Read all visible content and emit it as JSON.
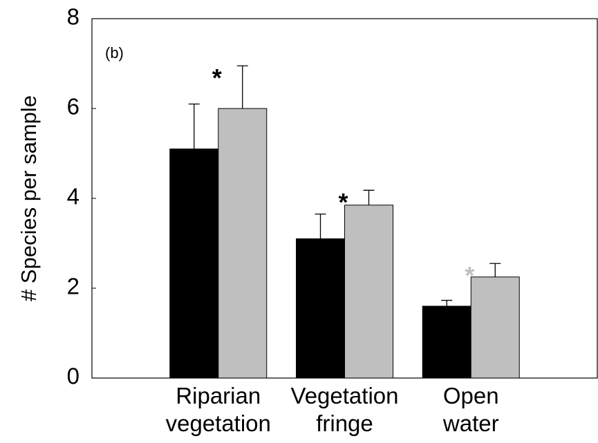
{
  "chart_data": {
    "type": "bar",
    "panel_label": "(b)",
    "y_label": "# Species per sample",
    "categories": [
      "Riparian vegetation",
      "Vegetation fringe",
      "Open water"
    ],
    "series": [
      {
        "color": "#000000",
        "values": [
          5.1,
          3.1,
          1.6
        ],
        "errors": [
          1.0,
          0.55,
          0.13
        ]
      },
      {
        "color": "#bfbfbf",
        "values": [
          6.0,
          3.85,
          2.25
        ],
        "errors": [
          0.95,
          0.33,
          0.3
        ]
      }
    ],
    "annotations": [
      {
        "text": "*",
        "color": "#000000"
      },
      {
        "text": "*",
        "color": "#000000"
      },
      {
        "text": "*",
        "color": "#bfbfbf"
      }
    ],
    "ylim": [
      0,
      8
    ],
    "yticks": [
      0,
      2,
      4,
      6,
      8
    ]
  }
}
